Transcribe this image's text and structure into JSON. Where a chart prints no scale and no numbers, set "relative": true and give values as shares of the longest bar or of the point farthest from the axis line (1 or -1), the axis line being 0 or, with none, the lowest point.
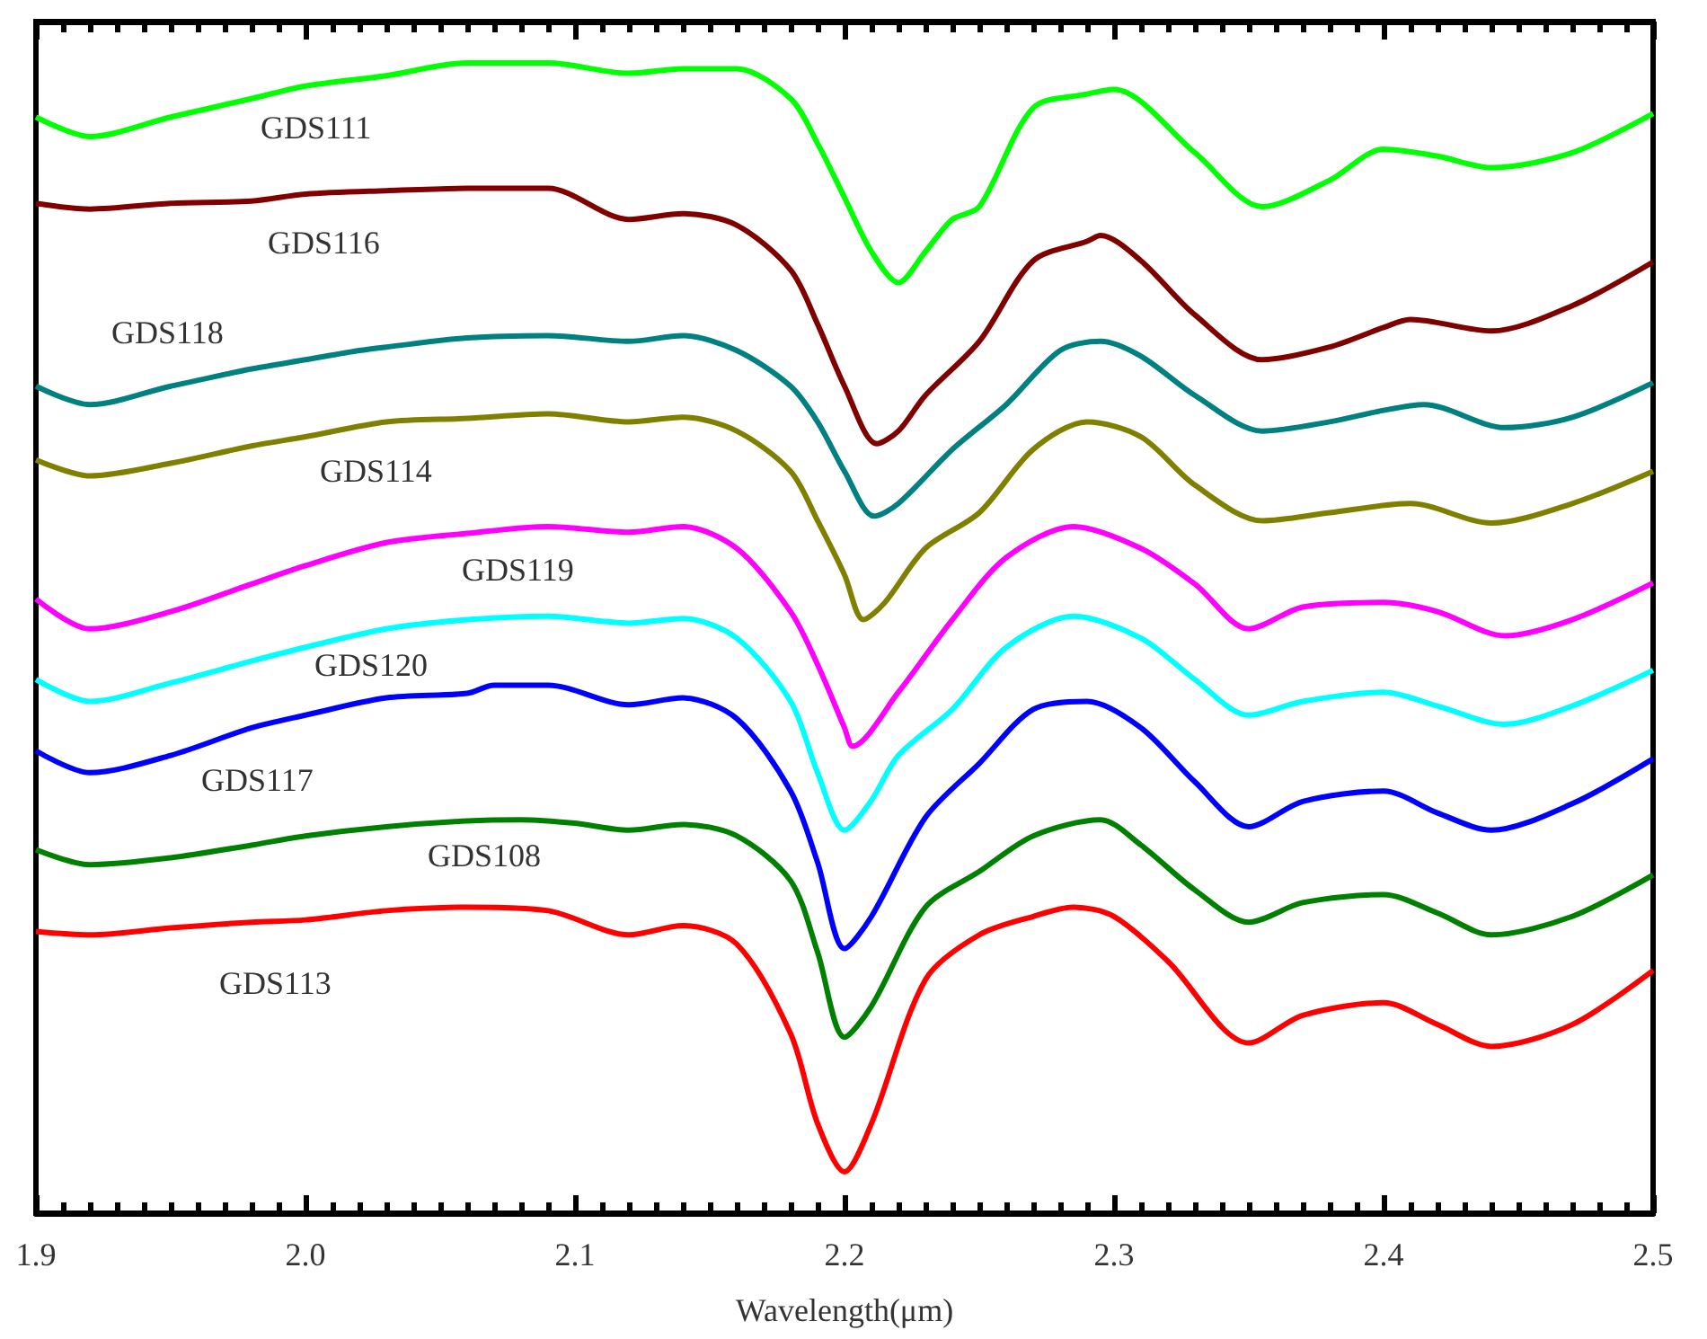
{
  "chart_data": {
    "type": "line",
    "relative": true,
    "xlabel": "Wavelength(μm)",
    "xlim": [
      1.9,
      2.5
    ],
    "xticks": [
      1.9,
      {
        "value": 2.0,
        "label": "2.0"
      },
      2.1,
      2.2,
      2.3,
      2.4,
      2.5
    ],
    "legend": false,
    "grid": false,
    "series": [
      {
        "name": "GDS111",
        "color": "#00ff00",
        "x": [
          1.9,
          1.92,
          1.95,
          1.98,
          2.0,
          2.03,
          2.06,
          2.09,
          2.12,
          2.14,
          2.16,
          2.18,
          2.19,
          2.2,
          2.21,
          2.22,
          2.23,
          2.24,
          2.25,
          2.27,
          2.29,
          2.3,
          2.33,
          2.355,
          2.38,
          2.4,
          2.42,
          2.44,
          2.47,
          2.5
        ],
        "values": [
          0.953,
          0.936,
          0.953,
          0.969,
          0.98,
          0.989,
          1,
          1,
          0.991,
          0.995,
          0.995,
          0.969,
          0.93,
          0.883,
          0.836,
          0.809,
          0.836,
          0.864,
          0.875,
          0.961,
          0.973,
          0.977,
          0.922,
          0.875,
          0.898,
          0.925,
          0.919,
          0.909,
          0.922,
          0.956
        ]
      },
      {
        "name": "GDS116",
        "color": "#800000",
        "x": [
          1.9,
          1.92,
          1.95,
          1.98,
          2.0,
          2.03,
          2.06,
          2.09,
          2.12,
          2.14,
          2.16,
          2.18,
          2.19,
          2.2,
          2.212,
          2.22,
          2.23,
          2.25,
          2.27,
          2.29,
          2.295,
          2.31,
          2.33,
          2.355,
          2.38,
          2.4,
          2.41,
          2.44,
          2.47,
          2.5
        ],
        "values": [
          0.878,
          0.873,
          0.878,
          0.88,
          0.886,
          0.889,
          0.891,
          0.891,
          0.864,
          0.869,
          0.859,
          0.82,
          0.773,
          0.719,
          0.669,
          0.68,
          0.711,
          0.758,
          0.828,
          0.845,
          0.85,
          0.828,
          0.781,
          0.742,
          0.753,
          0.77,
          0.777,
          0.767,
          0.789,
          0.827
        ]
      },
      {
        "name": "GDS118",
        "color": "#008080",
        "x": [
          1.9,
          1.92,
          1.95,
          1.98,
          2.0,
          2.02,
          2.03,
          2.06,
          2.09,
          2.12,
          2.14,
          2.16,
          2.18,
          2.19,
          2.2,
          2.211,
          2.22,
          2.24,
          2.26,
          2.28,
          2.295,
          2.31,
          2.33,
          2.355,
          2.38,
          2.4,
          2.415,
          2.445,
          2.47,
          2.5
        ],
        "values": [
          0.719,
          0.703,
          0.719,
          0.734,
          0.742,
          0.75,
          0.753,
          0.761,
          0.763,
          0.758,
          0.763,
          0.75,
          0.719,
          0.688,
          0.645,
          0.606,
          0.617,
          0.664,
          0.703,
          0.75,
          0.758,
          0.745,
          0.711,
          0.68,
          0.688,
          0.698,
          0.703,
          0.683,
          0.692,
          0.722
        ]
      },
      {
        "name": "GDS114",
        "color": "#808000",
        "x": [
          1.9,
          1.92,
          1.95,
          1.98,
          2.0,
          2.03,
          2.06,
          2.09,
          2.12,
          2.14,
          2.16,
          2.18,
          2.19,
          2.2,
          2.207,
          2.215,
          2.23,
          2.25,
          2.27,
          2.29,
          2.31,
          2.33,
          2.355,
          2.38,
          2.41,
          2.44,
          2.47,
          2.5
        ],
        "values": [
          0.655,
          0.641,
          0.652,
          0.667,
          0.675,
          0.688,
          0.691,
          0.695,
          0.688,
          0.692,
          0.68,
          0.645,
          0.602,
          0.555,
          0.516,
          0.531,
          0.578,
          0.609,
          0.664,
          0.688,
          0.675,
          0.633,
          0.602,
          0.609,
          0.617,
          0.6,
          0.617,
          0.645
        ]
      },
      {
        "name": "GDS119",
        "color": "#ff00ff",
        "x": [
          1.9,
          1.92,
          1.95,
          1.98,
          2.0,
          2.03,
          2.06,
          2.09,
          2.12,
          2.14,
          2.16,
          2.18,
          2.19,
          2.2,
          2.203,
          2.22,
          2.24,
          2.26,
          2.285,
          2.31,
          2.33,
          2.35,
          2.37,
          2.4,
          2.42,
          2.445,
          2.47,
          2.5
        ],
        "values": [
          0.534,
          0.508,
          0.523,
          0.547,
          0.563,
          0.583,
          0.591,
          0.597,
          0.592,
          0.597,
          0.578,
          0.523,
          0.477,
          0.422,
          0.406,
          0.453,
          0.516,
          0.57,
          0.597,
          0.578,
          0.547,
          0.508,
          0.527,
          0.531,
          0.523,
          0.502,
          0.516,
          0.548
        ]
      },
      {
        "name": "GDS120",
        "color": "#00ffff",
        "x": [
          1.9,
          1.92,
          1.95,
          1.98,
          2.0,
          2.03,
          2.06,
          2.09,
          2.12,
          2.14,
          2.16,
          2.18,
          2.19,
          2.2,
          2.21,
          2.22,
          2.24,
          2.26,
          2.285,
          2.31,
          2.33,
          2.35,
          2.37,
          2.4,
          2.42,
          2.445,
          2.47,
          2.5
        ],
        "values": [
          0.464,
          0.445,
          0.461,
          0.48,
          0.492,
          0.508,
          0.516,
          0.519,
          0.513,
          0.517,
          0.5,
          0.445,
          0.383,
          0.333,
          0.359,
          0.398,
          0.438,
          0.492,
          0.519,
          0.5,
          0.464,
          0.433,
          0.445,
          0.453,
          0.441,
          0.425,
          0.441,
          0.472
        ]
      },
      {
        "name": "GDS117",
        "color": "#0000ff",
        "x": [
          1.9,
          1.92,
          1.95,
          1.98,
          2.0,
          2.03,
          2.06,
          2.07,
          2.09,
          2.12,
          2.14,
          2.16,
          2.18,
          2.19,
          2.2,
          2.21,
          2.23,
          2.25,
          2.27,
          2.29,
          2.31,
          2.33,
          2.35,
          2.37,
          2.4,
          2.42,
          2.44,
          2.47,
          2.5
        ],
        "values": [
          0.402,
          0.383,
          0.398,
          0.422,
          0.433,
          0.448,
          0.452,
          0.459,
          0.459,
          0.442,
          0.448,
          0.43,
          0.367,
          0.305,
          0.23,
          0.258,
          0.344,
          0.391,
          0.438,
          0.445,
          0.422,
          0.375,
          0.336,
          0.358,
          0.367,
          0.348,
          0.333,
          0.356,
          0.395
        ]
      },
      {
        "name": "GDS108",
        "color": "#008000",
        "x": [
          1.9,
          1.92,
          1.95,
          1.98,
          2.0,
          2.03,
          2.06,
          2.08,
          2.1,
          2.12,
          2.14,
          2.16,
          2.18,
          2.19,
          2.2,
          2.21,
          2.23,
          2.25,
          2.27,
          2.295,
          2.31,
          2.33,
          2.35,
          2.37,
          2.4,
          2.42,
          2.44,
          2.47,
          2.5
        ],
        "values": [
          0.316,
          0.303,
          0.309,
          0.32,
          0.328,
          0.336,
          0.341,
          0.342,
          0.339,
          0.333,
          0.338,
          0.328,
          0.289,
          0.227,
          0.153,
          0.18,
          0.266,
          0.297,
          0.328,
          0.342,
          0.32,
          0.281,
          0.253,
          0.27,
          0.277,
          0.261,
          0.242,
          0.258,
          0.294
        ]
      },
      {
        "name": "GDS113",
        "color": "#ff0000",
        "x": [
          1.9,
          1.92,
          1.95,
          1.98,
          2.0,
          2.03,
          2.06,
          2.09,
          2.12,
          2.14,
          2.16,
          2.18,
          2.19,
          2.2,
          2.21,
          2.23,
          2.25,
          2.27,
          2.285,
          2.3,
          2.32,
          2.35,
          2.37,
          2.4,
          2.42,
          2.44,
          2.47,
          2.5
        ],
        "values": [
          0.245,
          0.242,
          0.248,
          0.253,
          0.255,
          0.263,
          0.266,
          0.263,
          0.242,
          0.25,
          0.234,
          0.156,
          0.078,
          0.036,
          0.078,
          0.203,
          0.242,
          0.258,
          0.266,
          0.258,
          0.219,
          0.148,
          0.172,
          0.183,
          0.164,
          0.145,
          0.164,
          0.211
        ]
      }
    ]
  }
}
